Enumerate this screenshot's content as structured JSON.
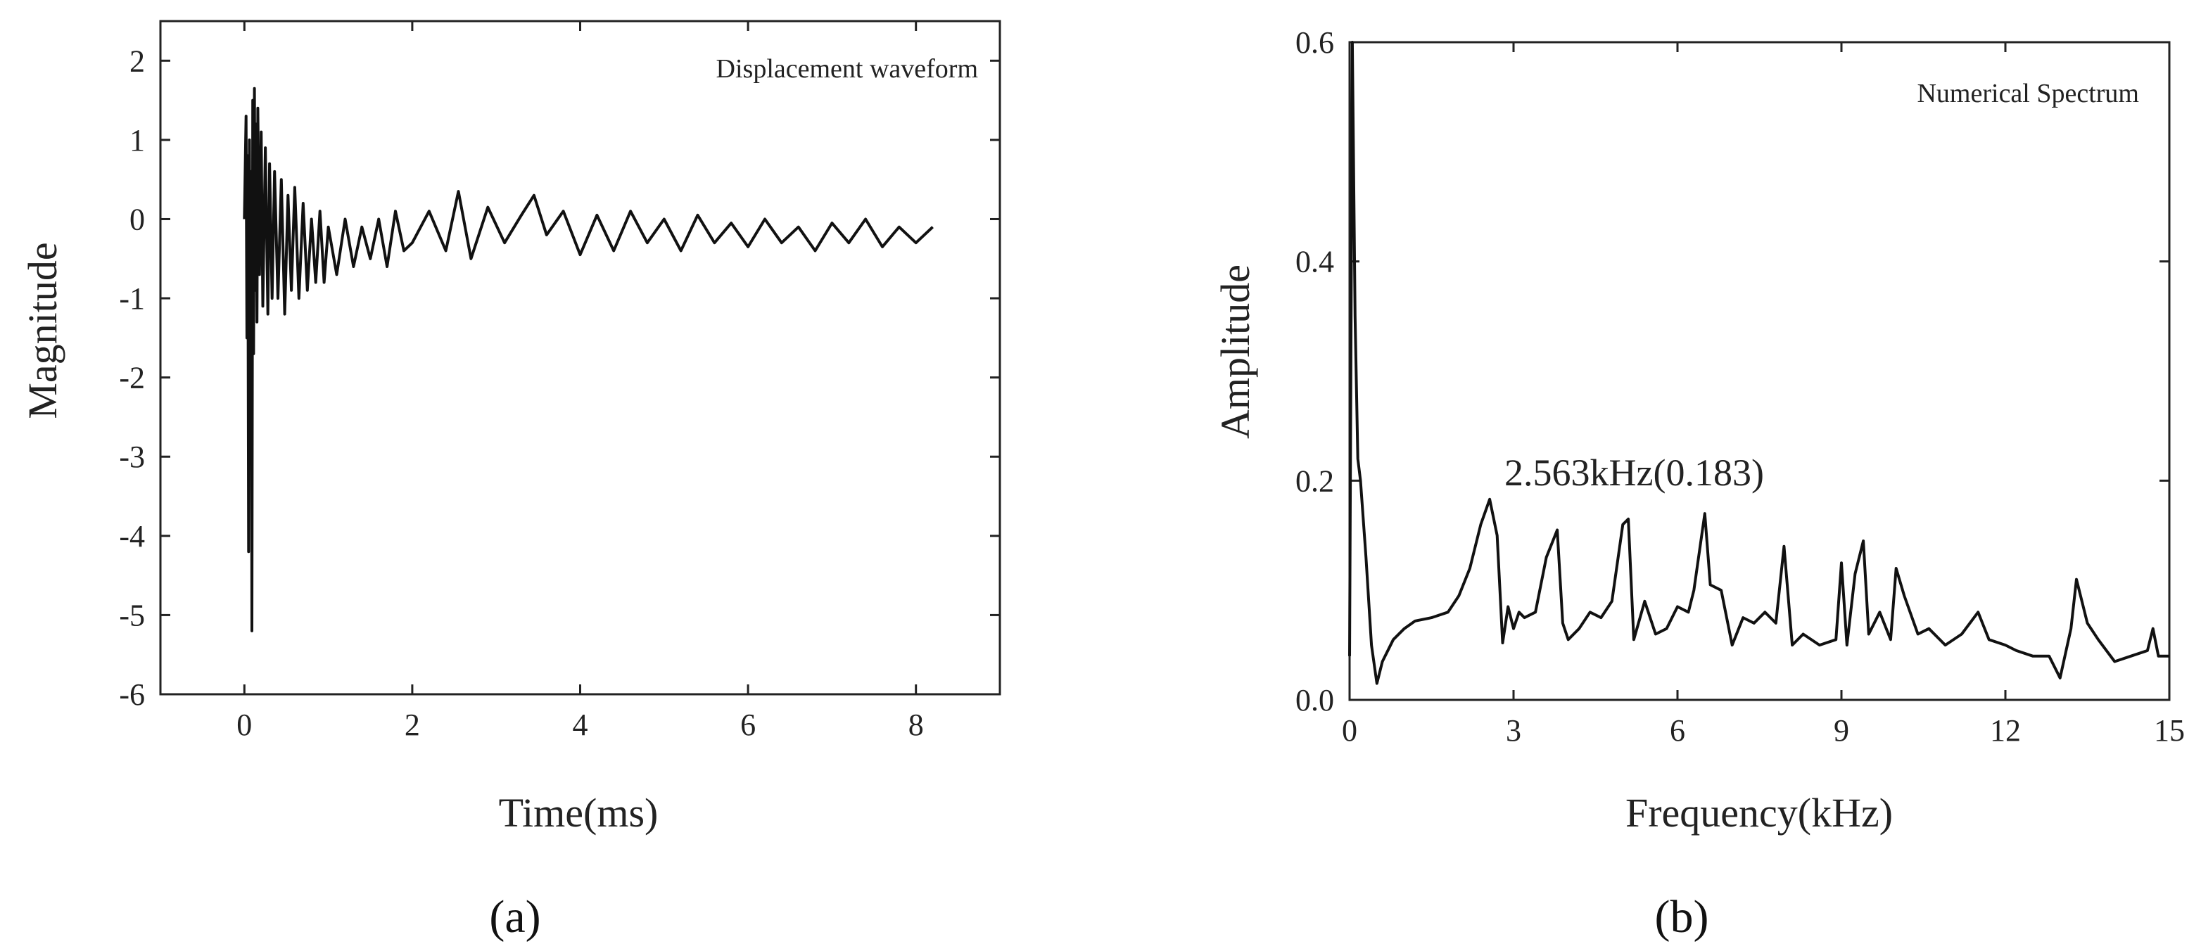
{
  "chart_data": [
    {
      "id": "a",
      "type": "line",
      "title": "",
      "annotation": "Displacement waveform",
      "xlabel": "Time(ms)",
      "ylabel": "Magnitude",
      "panel_label": "(a)",
      "xlim": [
        -1,
        9
      ],
      "ylim": [
        -6,
        2.5
      ],
      "xticks": [
        0,
        2,
        4,
        6,
        8
      ],
      "xtick_labels": [
        "0",
        "2",
        "4",
        "6",
        "8"
      ],
      "yticks": [
        2,
        1,
        0,
        -1,
        -2,
        -3,
        -4,
        -5,
        -6
      ],
      "ytick_labels": [
        "2",
        "1",
        "0",
        "-1",
        "-2",
        "-3",
        "-4",
        "-5",
        "-6"
      ],
      "series": [
        {
          "name": "Displacement waveform",
          "x": [
            0.0,
            0.02,
            0.03,
            0.04,
            0.05,
            0.06,
            0.07,
            0.08,
            0.09,
            0.1,
            0.11,
            0.12,
            0.13,
            0.14,
            0.15,
            0.16,
            0.18,
            0.2,
            0.22,
            0.25,
            0.28,
            0.3,
            0.33,
            0.36,
            0.4,
            0.44,
            0.48,
            0.52,
            0.56,
            0.6,
            0.65,
            0.7,
            0.75,
            0.8,
            0.85,
            0.9,
            0.95,
            1.0,
            1.1,
            1.2,
            1.3,
            1.4,
            1.5,
            1.6,
            1.7,
            1.8,
            1.9,
            2.0,
            2.2,
            2.4,
            2.55,
            2.7,
            2.9,
            3.1,
            3.3,
            3.45,
            3.6,
            3.8,
            4.0,
            4.2,
            4.4,
            4.6,
            4.8,
            5.0,
            5.2,
            5.4,
            5.6,
            5.8,
            6.0,
            6.2,
            6.4,
            6.6,
            6.8,
            7.0,
            7.2,
            7.4,
            7.6,
            7.8,
            8.0,
            8.2
          ],
          "y": [
            0.0,
            1.3,
            -1.5,
            0.8,
            -4.2,
            1.0,
            -2.3,
            0.6,
            -5.2,
            1.5,
            -1.7,
            1.65,
            -0.9,
            1.2,
            -1.3,
            1.4,
            -0.7,
            1.1,
            -1.1,
            0.9,
            -1.2,
            0.7,
            -1.0,
            0.6,
            -1.0,
            0.5,
            -1.2,
            0.3,
            -0.9,
            0.4,
            -1.0,
            0.2,
            -0.9,
            0.0,
            -0.8,
            0.1,
            -0.8,
            -0.1,
            -0.7,
            0.0,
            -0.6,
            -0.1,
            -0.5,
            0.0,
            -0.6,
            0.1,
            -0.4,
            -0.3,
            0.1,
            -0.4,
            0.35,
            -0.5,
            0.15,
            -0.3,
            0.05,
            0.3,
            -0.2,
            0.1,
            -0.45,
            0.05,
            -0.4,
            0.1,
            -0.3,
            0.0,
            -0.4,
            0.05,
            -0.3,
            -0.05,
            -0.35,
            0.0,
            -0.3,
            -0.1,
            -0.4,
            -0.05,
            -0.3,
            0.0,
            -0.35,
            -0.1,
            -0.3,
            -0.1
          ]
        }
      ]
    },
    {
      "id": "b",
      "type": "line",
      "title": "",
      "annotation": "Numerical Spectrum",
      "peak_label": "2.563kHz(0.183)",
      "peak": {
        "x": 2.563,
        "y": 0.183
      },
      "xlabel": "Frequency(kHz)",
      "ylabel": "Amplitude",
      "panel_label": "(b)",
      "xlim": [
        0,
        15
      ],
      "ylim": [
        0,
        0.6
      ],
      "xticks": [
        0,
        3,
        6,
        9,
        12,
        15
      ],
      "xtick_labels": [
        "0",
        "3",
        "6",
        "9",
        "12",
        "15"
      ],
      "yticks": [
        0.0,
        0.2,
        0.4,
        0.6
      ],
      "ytick_labels": [
        "0.0",
        "0.2",
        "0.4",
        "0.6"
      ],
      "series": [
        {
          "name": "Numerical Spectrum",
          "x": [
            0.0,
            0.05,
            0.1,
            0.15,
            0.2,
            0.3,
            0.4,
            0.5,
            0.6,
            0.8,
            1.0,
            1.2,
            1.5,
            1.8,
            2.0,
            2.2,
            2.4,
            2.563,
            2.7,
            2.8,
            2.9,
            3.0,
            3.1,
            3.2,
            3.4,
            3.6,
            3.8,
            3.9,
            4.0,
            4.2,
            4.4,
            4.6,
            4.8,
            5.0,
            5.1,
            5.2,
            5.4,
            5.6,
            5.8,
            6.0,
            6.2,
            6.3,
            6.5,
            6.6,
            6.8,
            7.0,
            7.2,
            7.4,
            7.6,
            7.8,
            7.95,
            8.1,
            8.3,
            8.6,
            8.9,
            9.0,
            9.1,
            9.25,
            9.4,
            9.5,
            9.7,
            9.9,
            10.0,
            10.15,
            10.4,
            10.6,
            10.9,
            11.2,
            11.5,
            11.7,
            12.0,
            12.2,
            12.5,
            12.8,
            13.0,
            13.2,
            13.3,
            13.5,
            13.7,
            14.0,
            14.3,
            14.6,
            14.7,
            14.8,
            15.0
          ],
          "y": [
            0.04,
            0.6,
            0.35,
            0.22,
            0.2,
            0.13,
            0.05,
            0.015,
            0.035,
            0.055,
            0.065,
            0.072,
            0.075,
            0.08,
            0.095,
            0.12,
            0.16,
            0.183,
            0.15,
            0.052,
            0.085,
            0.065,
            0.08,
            0.075,
            0.08,
            0.13,
            0.155,
            0.07,
            0.055,
            0.065,
            0.08,
            0.075,
            0.09,
            0.16,
            0.165,
            0.055,
            0.09,
            0.06,
            0.065,
            0.085,
            0.08,
            0.1,
            0.17,
            0.105,
            0.1,
            0.05,
            0.075,
            0.07,
            0.08,
            0.07,
            0.14,
            0.05,
            0.06,
            0.05,
            0.055,
            0.125,
            0.05,
            0.115,
            0.145,
            0.06,
            0.08,
            0.055,
            0.12,
            0.095,
            0.06,
            0.065,
            0.05,
            0.06,
            0.08,
            0.055,
            0.05,
            0.045,
            0.04,
            0.04,
            0.02,
            0.065,
            0.11,
            0.07,
            0.055,
            0.035,
            0.04,
            0.045,
            0.065,
            0.04,
            0.04
          ]
        }
      ]
    }
  ]
}
